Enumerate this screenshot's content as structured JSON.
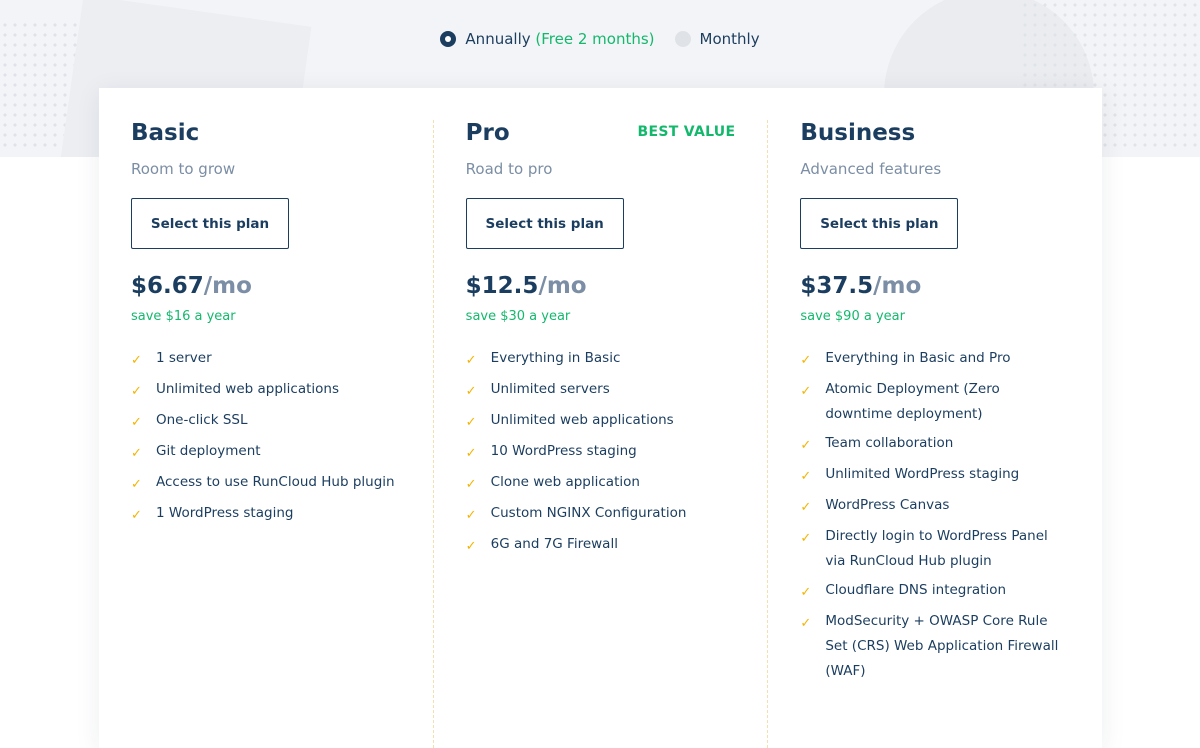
{
  "billing_toggle": {
    "annual_label": "Annually",
    "annual_note": "(Free 2 months)",
    "monthly_label": "Monthly",
    "selected": "annual"
  },
  "colors": {
    "primary": "#1b3d5f",
    "accent_green": "#14b86d",
    "check_yellow": "#f5b400"
  },
  "plans": [
    {
      "name": "Basic",
      "tagline": "Room to grow",
      "button": "Select this plan",
      "price": "$6.67",
      "unit": "/mo",
      "savings": "save $16 a year",
      "badge": "",
      "features": [
        "1 server",
        "Unlimited web applications",
        "One-click SSL",
        "Git deployment",
        "Access to use RunCloud Hub plugin",
        "1 WordPress staging"
      ]
    },
    {
      "name": "Pro",
      "tagline": "Road to pro",
      "button": "Select this plan",
      "price": "$12.5",
      "unit": "/mo",
      "savings": "save $30 a year",
      "badge": "BEST VALUE",
      "features": [
        "Everything in Basic",
        "Unlimited servers",
        "Unlimited web applications",
        "10 WordPress staging",
        "Clone web application",
        "Custom NGINX Configuration",
        "6G and 7G Firewall"
      ]
    },
    {
      "name": "Business",
      "tagline": "Advanced features",
      "button": "Select this plan",
      "price": "$37.5",
      "unit": "/mo",
      "savings": "save $90 a year",
      "badge": "",
      "features": [
        "Everything in Basic and Pro",
        "Atomic Deployment (Zero downtime deployment)",
        "Team collaboration",
        "Unlimited WordPress staging",
        "WordPress Canvas",
        "Directly login to WordPress Panel via RunCloud Hub plugin",
        "Cloudflare DNS integration",
        "ModSecurity + OWASP Core Rule Set (CRS) Web Application Firewall (WAF)"
      ]
    }
  ]
}
